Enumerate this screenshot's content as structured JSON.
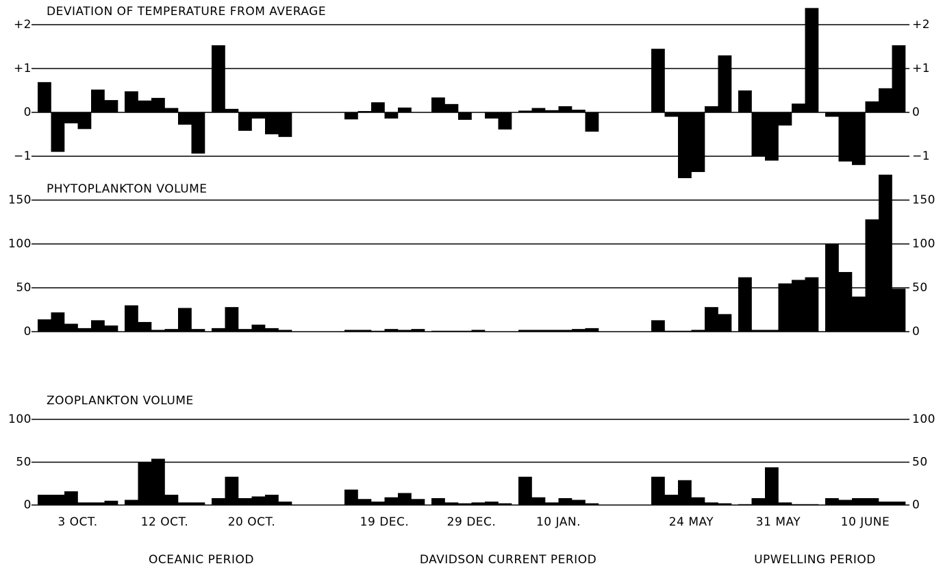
{
  "chart_data": [
    {
      "type": "bar",
      "title": "DEVIATION OF TEMPERATURE FROM AVERAGE",
      "color": "#000000",
      "ylim": [
        -1.55,
        2.45
      ],
      "yticks": [
        {
          "value": 2,
          "label": "+2"
        },
        {
          "value": 1,
          "label": "+1"
        },
        0,
        {
          "value": -1,
          "label": "−1"
        }
      ],
      "values": [
        [
          0.69,
          -0.9,
          -0.25,
          -0.38,
          0.52,
          0.28
        ],
        [
          0.48,
          0.27,
          0.33,
          0.1,
          -0.28,
          -0.94
        ],
        [
          1.53,
          0.08,
          -0.42,
          -0.14,
          -0.5,
          -0.56
        ],
        [
          -0.16,
          0.03,
          0.23,
          -0.14,
          0.11,
          0
        ],
        [
          0.34,
          0.19,
          -0.17,
          0,
          -0.14,
          -0.39
        ],
        [
          0.04,
          0.1,
          0.05,
          0.14,
          0.06,
          -0.44
        ],
        [
          1.45,
          -0.1,
          -1.5,
          -1.36,
          0.14,
          1.3
        ],
        [
          0.5,
          -1.0,
          -1.1,
          -0.3,
          0.2,
          2.38
        ],
        [
          -0.1,
          -1.12,
          -1.2,
          0.25,
          0.55,
          1.53
        ]
      ]
    },
    {
      "type": "bar",
      "title": "PHYTOPLANKTON VOLUME",
      "color": "#000000",
      "ylim": [
        0,
        180
      ],
      "yticks": [
        150,
        100,
        50,
        0
      ],
      "values": [
        [
          14,
          22,
          9,
          4,
          13,
          7
        ],
        [
          30,
          11,
          2,
          3,
          27,
          3
        ],
        [
          4,
          28,
          3,
          8,
          4,
          2
        ],
        [
          2,
          2,
          1,
          3,
          2,
          3
        ],
        [
          1,
          1,
          1,
          2,
          0,
          0
        ],
        [
          2,
          2,
          2,
          2,
          3,
          4
        ],
        [
          13,
          1,
          1,
          2,
          28,
          20
        ],
        [
          62,
          2,
          2,
          55,
          59,
          62
        ],
        [
          100,
          68,
          40,
          128,
          179,
          49
        ]
      ]
    },
    {
      "type": "bar",
      "title": "ZOOPLANKTON VOLUME",
      "color": "#000000",
      "ylim": [
        0,
        100
      ],
      "yticks": [
        100,
        50,
        0
      ],
      "values": [
        [
          12,
          12,
          16,
          3,
          3,
          5
        ],
        [
          6,
          50,
          54,
          12,
          3,
          3
        ],
        [
          8,
          33,
          8,
          10,
          12,
          4
        ],
        [
          18,
          7,
          4,
          9,
          14,
          7
        ],
        [
          8,
          3,
          2,
          3,
          4,
          2
        ],
        [
          33,
          9,
          3,
          8,
          6,
          2
        ],
        [
          33,
          12,
          29,
          9,
          3,
          2
        ],
        [
          1,
          8,
          44,
          3,
          1,
          1
        ],
        [
          8,
          6,
          8,
          8,
          4,
          4
        ]
      ]
    }
  ],
  "x_axis": {
    "groups": [
      "3 OCT.",
      "12 OCT.",
      "20 OCT.",
      "19 DEC.",
      "29 DEC.",
      "10 JAN.",
      "24 MAY",
      "31 MAY",
      "10 JUNE"
    ],
    "periods": [
      "OCEANIC PERIOD",
      "DAVIDSON CURRENT PERIOD",
      "UPWELLING PERIOD"
    ]
  }
}
